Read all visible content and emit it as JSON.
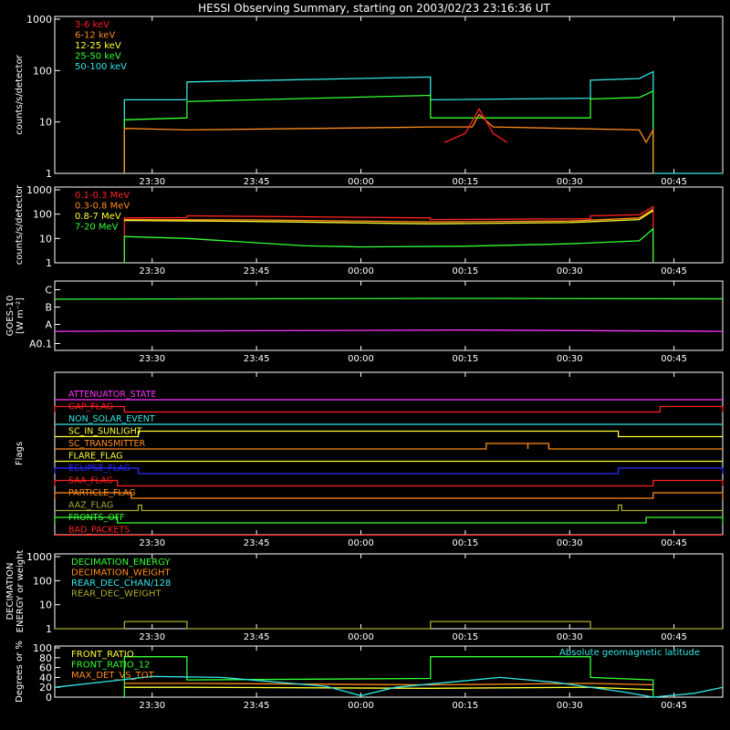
{
  "title": "HESSI Observing Summary, starting on 2003/02/23 23:16:36 UT",
  "colors": {
    "red": "#ff2020",
    "orange": "#ff8c1a",
    "yellow": "#ffff33",
    "green": "#33ff33",
    "cyan": "#33e6e6",
    "magenta": "#ff33ff",
    "blue": "#2a2aff",
    "olive": "#a8a830",
    "white": "#ffffff"
  },
  "time_ticks": [
    "23:30",
    "23:45",
    "00:00",
    "00:15",
    "00:30",
    "00:45"
  ],
  "chart_data": [
    {
      "id": "panel1",
      "type": "line",
      "ylabel": "counts/s/detector",
      "y_scale": "log",
      "ylim": [
        1,
        1000
      ],
      "y_ticks": [
        "1",
        "10",
        "100",
        "1000"
      ],
      "legend": [
        {
          "name": "3-6 keV",
          "color": "red"
        },
        {
          "name": "6-12 keV",
          "color": "orange"
        },
        {
          "name": "12-25 keV",
          "color": "yellow"
        },
        {
          "name": "25-50 keV",
          "color": "green"
        },
        {
          "name": "50-100 keV",
          "color": "cyan"
        }
      ],
      "series": [
        {
          "name": "50-100 keV",
          "color": "cyan",
          "points": [
            [
              "23:26",
              1
            ],
            [
              "23:26",
              27
            ],
            [
              "23:35",
              27
            ],
            [
              "23:35",
              60
            ],
            [
              "00:10",
              75
            ],
            [
              "00:10",
              27
            ],
            [
              "00:33",
              29
            ],
            [
              "00:33",
              65
            ],
            [
              "00:40",
              70
            ],
            [
              "00:42",
              95
            ],
            [
              "00:42",
              1
            ],
            [
              "00:52",
              1
            ]
          ]
        },
        {
          "name": "25-50 keV",
          "color": "green",
          "points": [
            [
              "23:26",
              1
            ],
            [
              "23:26",
              11
            ],
            [
              "23:35",
              12
            ],
            [
              "23:35",
              25
            ],
            [
              "00:10",
              33
            ],
            [
              "00:10",
              12
            ],
            [
              "00:33",
              12
            ],
            [
              "00:33",
              28
            ],
            [
              "00:40",
              30
            ],
            [
              "00:42",
              40
            ],
            [
              "00:42",
              1
            ]
          ]
        },
        {
          "name": "6-12 keV",
          "color": "orange",
          "points": [
            [
              "23:26",
              1
            ],
            [
              "23:26",
              7.5
            ],
            [
              "23:35",
              7
            ],
            [
              "00:05",
              7.8
            ],
            [
              "00:10",
              8
            ],
            [
              "00:16",
              8
            ],
            [
              "00:17",
              14
            ],
            [
              "00:19",
              8
            ],
            [
              "00:40",
              7
            ],
            [
              "00:41",
              4
            ],
            [
              "00:42",
              7
            ],
            [
              "00:42",
              1
            ]
          ]
        },
        {
          "name": "3-6 keV",
          "color": "red",
          "points": [
            [
              "00:12",
              4
            ],
            [
              "00:15",
              6
            ],
            [
              "00:17",
              18
            ],
            [
              "00:19",
              6
            ],
            [
              "00:21",
              4
            ]
          ]
        }
      ]
    },
    {
      "id": "panel2",
      "type": "line",
      "ylabel": "counts/s/detector",
      "y_scale": "log",
      "ylim": [
        1,
        1000
      ],
      "y_ticks": [
        "1",
        "10",
        "100",
        "1000"
      ],
      "legend": [
        {
          "name": "0.1-0.3 MeV",
          "color": "red"
        },
        {
          "name": "0.3-0.8 MeV",
          "color": "orange"
        },
        {
          "name": "0.8-7 MeV",
          "color": "yellow"
        },
        {
          "name": "7-20 MeV",
          "color": "green"
        }
      ],
      "series": [
        {
          "name": "0.1-0.3 MeV",
          "color": "red",
          "points": [
            [
              "23:26",
              1
            ],
            [
              "23:26",
              70
            ],
            [
              "23:35",
              72
            ],
            [
              "23:35",
              85
            ],
            [
              "00:10",
              70
            ],
            [
              "00:10",
              60
            ],
            [
              "00:33",
              65
            ],
            [
              "00:33",
              85
            ],
            [
              "00:40",
              95
            ],
            [
              "00:42",
              200
            ],
            [
              "00:42",
              1
            ]
          ]
        },
        {
          "name": "0.3-0.8 MeV",
          "color": "orange",
          "points": [
            [
              "23:26",
              60
            ],
            [
              "23:45",
              58
            ],
            [
              "00:10",
              48
            ],
            [
              "00:30",
              52
            ],
            [
              "00:40",
              70
            ],
            [
              "00:42",
              160
            ]
          ]
        },
        {
          "name": "0.8-7 MeV",
          "color": "yellow",
          "points": [
            [
              "23:26",
              55
            ],
            [
              "23:45",
              50
            ],
            [
              "00:10",
              40
            ],
            [
              "00:30",
              45
            ],
            [
              "00:40",
              60
            ],
            [
              "00:42",
              140
            ]
          ]
        },
        {
          "name": "7-20 MeV",
          "color": "green",
          "points": [
            [
              "23:26",
              1
            ],
            [
              "23:26",
              12
            ],
            [
              "23:35",
              10
            ],
            [
              "23:52",
              5
            ],
            [
              "00:00",
              4.5
            ],
            [
              "00:15",
              4.8
            ],
            [
              "00:30",
              6
            ],
            [
              "00:40",
              8
            ],
            [
              "00:42",
              25
            ],
            [
              "00:42",
              1
            ]
          ]
        }
      ]
    },
    {
      "id": "panel3",
      "type": "line",
      "ylabel": "GOES-10",
      "ylabel2": "[W m⁻²]",
      "y_ticks": [
        "A0.1",
        "A",
        "B",
        "C"
      ],
      "series": [
        {
          "name": "goes-long",
          "color": "green",
          "points": [
            [
              "23:16",
              5.9
            ],
            [
              "00:15",
              6.0
            ],
            [
              "00:52",
              5.95
            ]
          ]
        },
        {
          "name": "goes-short",
          "color": "magenta",
          "points": [
            [
              "23:16",
              2.2
            ],
            [
              "00:15",
              2.35
            ],
            [
              "00:52",
              2.2
            ]
          ]
        }
      ]
    },
    {
      "id": "flags",
      "type": "table",
      "ylabel": "Flags",
      "flags": [
        {
          "name": "ATTENUATOR_STATE",
          "color": "magenta",
          "segments": []
        },
        {
          "name": "GAP_FLAG",
          "color": "red",
          "segments": [
            [
              "23:16",
              "23:26"
            ],
            [
              "00:43",
              "00:52"
            ]
          ]
        },
        {
          "name": "NON_SOLAR_EVENT",
          "color": "cyan",
          "segments": []
        },
        {
          "name": "SC_IN_SUNLIGHT",
          "color": "yellow",
          "segments": [
            [
              "23:28",
              "00:37"
            ]
          ]
        },
        {
          "name": "SC_TRANSMITTER",
          "color": "orange",
          "segments": [
            [
              "00:18",
              "00:24"
            ],
            [
              "00:24",
              "00:27"
            ]
          ]
        },
        {
          "name": "FLARE_FLAG",
          "color": "yellow",
          "segments": []
        },
        {
          "name": "ECLIPSE_FLAG",
          "color": "blue",
          "segments": [
            [
              "23:16",
              "23:28"
            ],
            [
              "00:37",
              "00:52"
            ]
          ]
        },
        {
          "name": "SAA_FLAG",
          "color": "red",
          "segments": [
            [
              "23:16",
              "23:25"
            ],
            [
              "00:42",
              "00:52"
            ]
          ]
        },
        {
          "name": "PARTICLE_FLAG",
          "color": "orange",
          "segments": [
            [
              "23:16",
              "23:27"
            ],
            [
              "00:42",
              "00:52"
            ]
          ]
        },
        {
          "name": "AAZ_FLAG",
          "color": "olive",
          "segments": [
            [
              "23:28",
              "23:28.5"
            ],
            [
              "00:37",
              "00:37.5"
            ]
          ]
        },
        {
          "name": "FRONTS_OFF",
          "color": "green",
          "segments": [
            [
              "23:16",
              "23:25"
            ],
            [
              "00:41",
              "00:52"
            ]
          ]
        },
        {
          "name": "BAD_PACKETS",
          "color": "red",
          "segments": []
        }
      ]
    },
    {
      "id": "panel5",
      "type": "line",
      "ylabel": "DECIMATION",
      "ylabel2": "ENERGY or weight",
      "y_scale": "log",
      "ylim": [
        1,
        1000
      ],
      "y_ticks": [
        "1",
        "10",
        "100",
        "1000"
      ],
      "legend": [
        {
          "name": "DECIMATION_ENERGY",
          "color": "green"
        },
        {
          "name": "DECIMATION_WEIGHT",
          "color": "orange"
        },
        {
          "name": "REAR_DEC_CHAN/128",
          "color": "cyan"
        },
        {
          "name": "REAR_DEC_WEIGHT",
          "color": "olive"
        }
      ],
      "series": [
        {
          "name": "REAR_DEC_WEIGHT",
          "color": "olive",
          "points": [
            [
              "23:16",
              1
            ],
            [
              "23:26",
              1
            ],
            [
              "23:26",
              2
            ],
            [
              "23:35",
              2
            ],
            [
              "23:35",
              1
            ],
            [
              "00:10",
              1
            ],
            [
              "00:10",
              2
            ],
            [
              "00:33",
              2
            ],
            [
              "00:33",
              1
            ],
            [
              "00:52",
              1
            ]
          ]
        }
      ]
    },
    {
      "id": "panel6",
      "type": "line",
      "ylabel": "Degrees or %",
      "ylim": [
        0,
        100
      ],
      "y_ticks": [
        "0",
        "20",
        "40",
        "60",
        "80",
        "100"
      ],
      "legend": [
        {
          "name": "FRONT_RATIO",
          "color": "yellow"
        },
        {
          "name": "FRONT_RATIO_12",
          "color": "green"
        },
        {
          "name": "MAX_DET_VS_TOT",
          "color": "orange"
        }
      ],
      "legend_right": "Absolute geomagnetic latitude",
      "series": [
        {
          "name": "FRONT_RATIO_12",
          "color": "green",
          "points": [
            [
              "23:26",
              0
            ],
            [
              "23:26",
              82
            ],
            [
              "23:35",
              82
            ],
            [
              "23:35",
              35
            ],
            [
              "00:10",
              38
            ],
            [
              "00:10",
              82
            ],
            [
              "00:33",
              82
            ],
            [
              "00:33",
              40
            ],
            [
              "00:42",
              35
            ],
            [
              "00:42",
              0
            ]
          ]
        },
        {
          "name": "MAX_DET_VS_TOT",
          "color": "orange",
          "points": [
            [
              "23:26",
              28
            ],
            [
              "23:35",
              28
            ],
            [
              "00:10",
              25
            ],
            [
              "00:33",
              28
            ],
            [
              "00:42",
              25
            ]
          ]
        },
        {
          "name": "FRONT_RATIO",
          "color": "yellow",
          "points": [
            [
              "23:26",
              20
            ],
            [
              "23:35",
              20
            ],
            [
              "00:10",
              18
            ],
            [
              "00:33",
              20
            ],
            [
              "00:42",
              15
            ]
          ]
        },
        {
          "name": "Absolute geomagnetic latitude",
          "color": "cyan",
          "points": [
            [
              "23:16",
              20
            ],
            [
              "23:30",
              42
            ],
            [
              "23:40",
              40
            ],
            [
              "23:55",
              22
            ],
            [
              "00:00",
              3
            ],
            [
              "00:05",
              20
            ],
            [
              "00:20",
              40
            ],
            [
              "00:28",
              30
            ],
            [
              "00:38",
              10
            ],
            [
              "00:42",
              0
            ],
            [
              "00:48",
              8
            ],
            [
              "00:52",
              20
            ]
          ]
        }
      ]
    }
  ]
}
